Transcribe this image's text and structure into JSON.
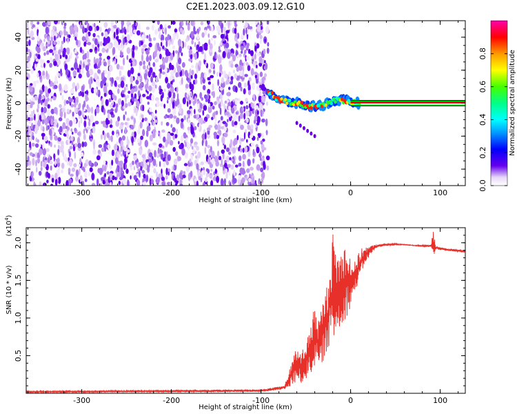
{
  "title": "C2E1.2023.003.09.12.G10",
  "colors": {
    "snr_line": "#e8302a",
    "scatter_purple": "#6a00ee",
    "axis": "#000000",
    "background": "#ffffff"
  },
  "chart_data": [
    {
      "type": "heatmap",
      "xlabel": "Height of straight line (km)",
      "ylabel": "Frequency (Hz)",
      "xlim": [
        -362,
        128
      ],
      "ylim": [
        -50,
        50
      ],
      "x_ticks": [
        -300,
        -200,
        -100,
        0,
        100
      ],
      "y_ticks": [
        -40,
        -20,
        0,
        20,
        40
      ],
      "colorbar": {
        "label": "Normalized spectral amplitude",
        "range": [
          0,
          1
        ],
        "ticks": [
          "0.0",
          "0.2",
          "0.4",
          "0.6",
          "0.8"
        ],
        "colormap": [
          "#ff00aa",
          "#ff0000",
          "#ff9900",
          "#ffff00",
          "#44ff00",
          "#00ff88",
          "#00ffff",
          "#0099ff",
          "#0000ff",
          "#6600ee",
          "#e8d8f8"
        ]
      },
      "regions": [
        {
          "kind": "diffuse_noise",
          "x_range": [
            -362,
            -92
          ],
          "freq_range": [
            -50,
            50
          ],
          "amplitude_range": [
            0.0,
            0.15
          ]
        },
        {
          "kind": "wandering_signal",
          "x_range": [
            -92,
            10
          ],
          "freq_center": [
            [
              -92,
              7
            ],
            [
              -80,
              2
            ],
            [
              -60,
              0
            ],
            [
              -45,
              -2
            ],
            [
              -30,
              -1
            ],
            [
              -15,
              2
            ],
            [
              0,
              1
            ],
            [
              10,
              0
            ]
          ],
          "amplitude_range": [
            0.3,
            1.0
          ]
        },
        {
          "kind": "tone_line",
          "x_range": [
            0,
            128
          ],
          "freq": 0,
          "amplitude": 1.0
        },
        {
          "kind": "spur",
          "x_range": [
            -60,
            -40
          ],
          "freq_range": [
            -20,
            -12
          ]
        }
      ]
    },
    {
      "type": "line",
      "xlabel": "Height of straight line (km)",
      "ylabel": "SNR (10 * v/v)",
      "y_scale_label": "(x10",
      "y_scale_exp": "4",
      "y_scale_close": ")",
      "xlim": [
        -362,
        128
      ],
      "ylim": [
        0,
        22000
      ],
      "x_ticks": [
        -300,
        -200,
        -100,
        0,
        100
      ],
      "y_ticks": [
        "0.5",
        "1.0",
        "1.5",
        "2.0"
      ],
      "y_tick_values": [
        5000,
        10000,
        15000,
        20000
      ],
      "series": [
        {
          "color": "#e8302a",
          "envelope": {
            "x": [
              -362,
              -100,
              -75,
              -70,
              -65,
              -60,
              -55,
              -50,
              -45,
              -40,
              -35,
              -30,
              -25,
              -20,
              -15,
              -10,
              -5,
              0,
              5,
              10,
              15,
              20,
              25,
              30,
              40,
              50,
              60,
              70,
              80,
              90,
              92,
              95,
              100,
              110,
              120,
              128
            ],
            "low": [
              100,
              200,
              500,
              600,
              1000,
              1500,
              1200,
              1800,
              2500,
              3500,
              2800,
              4500,
              6000,
              6500,
              7500,
              9000,
              10000,
              11500,
              13500,
              15000,
              17000,
              18000,
              18800,
              19400,
              19600,
              19700,
              19700,
              19600,
              19500,
              19400,
              18000,
              19100,
              19000,
              18900,
              18800,
              18700
            ],
            "high": [
              300,
              500,
              1000,
              2000,
              5000,
              6000,
              5500,
              7000,
              8500,
              12000,
              10000,
              13000,
              15000,
              21500,
              19000,
              19000,
              20500,
              18000,
              17500,
              19000,
              19500,
              19500,
              19700,
              19800,
              19900,
              19900,
              19800,
              19700,
              19700,
              19800,
              21700,
              19600,
              19400,
              19200,
              19100,
              19000
            ]
          }
        }
      ]
    }
  ]
}
